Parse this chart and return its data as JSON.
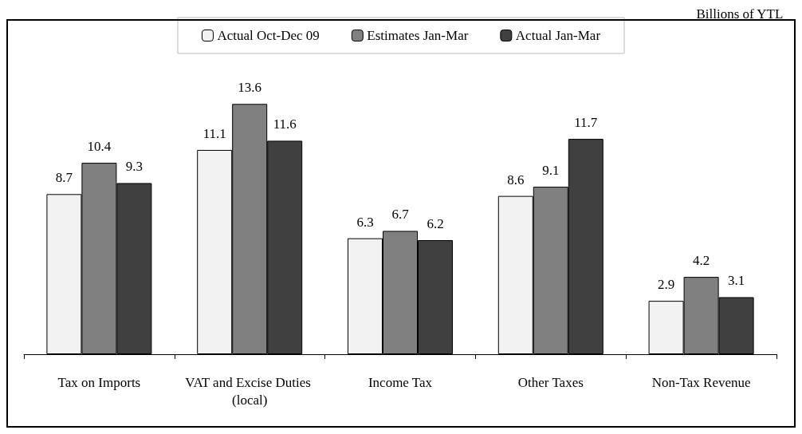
{
  "chart_data": {
    "type": "bar",
    "subtitle": "Billions of YTL",
    "categories": [
      "Tax on Imports",
      "VAT and Excise Duties (local)",
      "Income Tax",
      "Other Taxes",
      "Non-Tax Revenue"
    ],
    "series": [
      {
        "name": "Actual Oct-Dec 09",
        "color": "#f2f2f2",
        "values": [
          8.7,
          11.1,
          6.3,
          8.6,
          2.9
        ]
      },
      {
        "name": "Estimates Jan-Mar",
        "color": "#808080",
        "values": [
          10.4,
          13.6,
          6.7,
          9.1,
          4.2
        ]
      },
      {
        "name": "Actual Jan-Mar",
        "color": "#404040",
        "values": [
          9.3,
          11.6,
          6.2,
          11.7,
          3.1
        ]
      }
    ],
    "data_labels": true,
    "legend": "top"
  }
}
